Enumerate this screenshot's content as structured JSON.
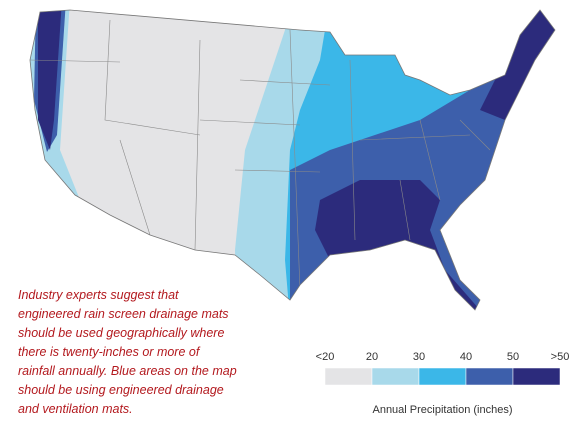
{
  "note": {
    "lines": [
      "Industry experts suggest that",
      "engineered rain screen drainage mats",
      "should be used geographically where",
      "there is twenty-inches or more of",
      "rainfall annually. Blue areas on the map",
      "should be using engineered drainage",
      "and ventilation mats."
    ]
  },
  "legend": {
    "title": "Annual Precipitation (inches)",
    "labels": [
      "<20",
      "20",
      "30",
      "40",
      "50",
      ">50"
    ],
    "colors": [
      "#e4e4e6",
      "#a8d9ea",
      "#3bb7e8",
      "#3d5fab",
      "#2c2b7c"
    ]
  }
}
